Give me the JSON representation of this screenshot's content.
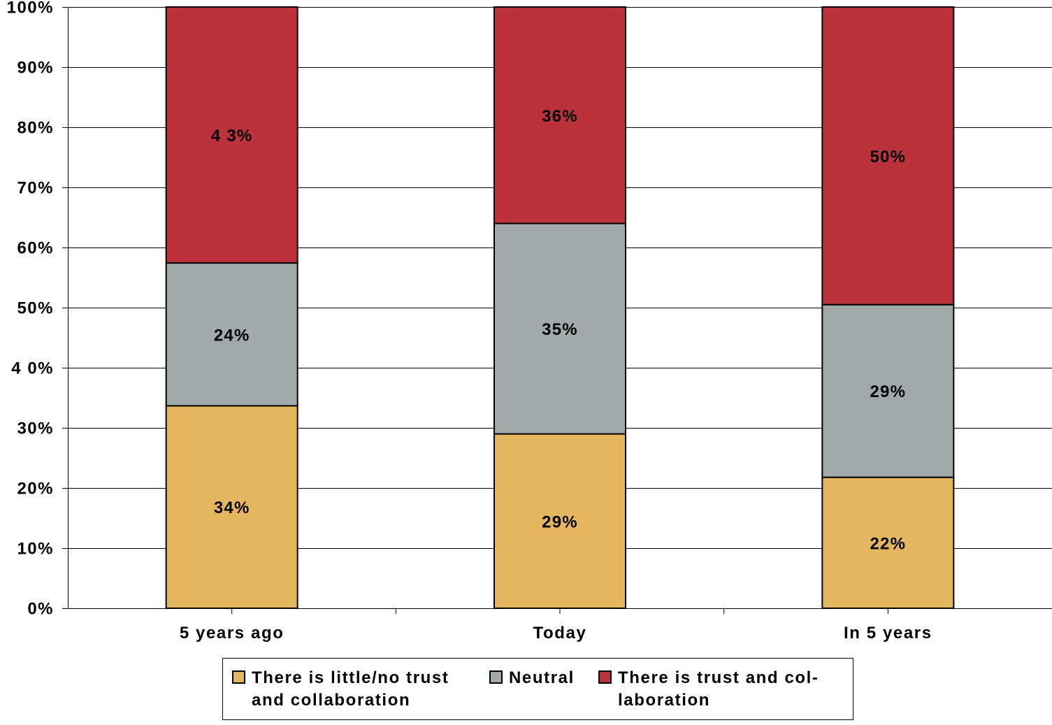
{
  "chart_data": {
    "type": "bar",
    "stacked": true,
    "categories": [
      "5 years ago",
      "Today",
      "In 5 years"
    ],
    "series": [
      {
        "name": "There is little/no trust and collaboration",
        "values": [
          34,
          29,
          22
        ],
        "labels": [
          "34%",
          "29%",
          "22%"
        ],
        "color": "#E5B660"
      },
      {
        "name": "Neutral",
        "values": [
          24,
          35,
          29
        ],
        "labels": [
          "24%",
          "35%",
          "29%"
        ],
        "color": "#A1A9A9"
      },
      {
        "name": "There is trust and collaboration",
        "values": [
          43,
          36,
          50
        ],
        "labels": [
          "4 3%",
          "36%",
          "50%"
        ],
        "color": "#BB323D"
      }
    ],
    "yticks": [
      "0%",
      "10%",
      "20%",
      "30%",
      "4 0%",
      "50%",
      "60%",
      "70%",
      "80%",
      "90%",
      "100%"
    ],
    "ylim": [
      0,
      100
    ],
    "grid": true,
    "legend_position": "bottom",
    "title": "",
    "xlabel": "",
    "ylabel": ""
  },
  "legend": {
    "items": [
      {
        "label": "There is little/no trust\nand collaboration",
        "color": "#E5B660"
      },
      {
        "label": "Neutral",
        "color": "#A1A9A9"
      },
      {
        "label": "There is trust and col-\nlaboration",
        "color": "#BB323D"
      }
    ]
  }
}
